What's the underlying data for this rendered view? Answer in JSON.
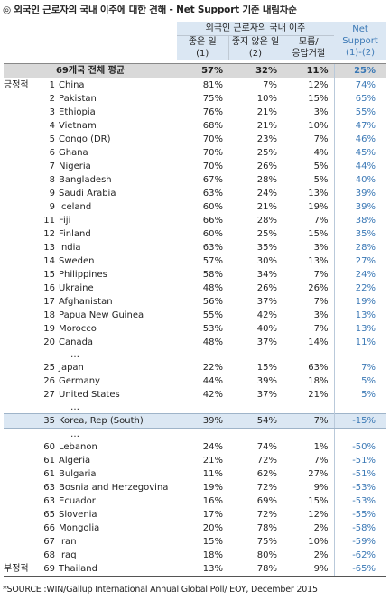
{
  "title": "◎ 외국인 근로자의 국내 이주에 대한 견해 - Net Support 기준 내림차순",
  "header": {
    "group_label": "외국인 근로자의 국내 이주",
    "col1": "좋은 일\n(1)",
    "col2": "좋지 않은 일\n(2)",
    "col3": "모름/\n응답거절",
    "net": "Net\nSupport\n(1)-(2)"
  },
  "average": {
    "label": "69개국 전체 평균",
    "good": "57%",
    "bad": "32%",
    "dk": "11%",
    "net": "25%"
  },
  "positive_label": "긍정적",
  "negative_label": "부정적",
  "top_rows": [
    {
      "rank": "1",
      "country": "China",
      "good": "81%",
      "bad": "7%",
      "dk": "12%",
      "net": "74%"
    },
    {
      "rank": "2",
      "country": "Pakistan",
      "good": "75%",
      "bad": "10%",
      "dk": "15%",
      "net": "65%"
    },
    {
      "rank": "3",
      "country": "Ethiopia",
      "good": "76%",
      "bad": "21%",
      "dk": "3%",
      "net": "55%"
    },
    {
      "rank": "4",
      "country": "Vietnam",
      "good": "68%",
      "bad": "21%",
      "dk": "10%",
      "net": "47%"
    },
    {
      "rank": "5",
      "country": "Congo (DR)",
      "good": "70%",
      "bad": "23%",
      "dk": "7%",
      "net": "46%"
    },
    {
      "rank": "6",
      "country": "Ghana",
      "good": "70%",
      "bad": "25%",
      "dk": "4%",
      "net": "45%"
    },
    {
      "rank": "7",
      "country": "Nigeria",
      "good": "70%",
      "bad": "26%",
      "dk": "5%",
      "net": "44%"
    },
    {
      "rank": "8",
      "country": "Bangladesh",
      "good": "67%",
      "bad": "28%",
      "dk": "5%",
      "net": "40%"
    },
    {
      "rank": "9",
      "country": "Saudi Arabia",
      "good": "63%",
      "bad": "24%",
      "dk": "13%",
      "net": "39%"
    },
    {
      "rank": "9",
      "country": "Iceland",
      "good": "60%",
      "bad": "21%",
      "dk": "19%",
      "net": "39%"
    },
    {
      "rank": "11",
      "country": "Fiji",
      "good": "66%",
      "bad": "28%",
      "dk": "7%",
      "net": "38%"
    },
    {
      "rank": "12",
      "country": "Finland",
      "good": "60%",
      "bad": "25%",
      "dk": "15%",
      "net": "35%"
    },
    {
      "rank": "13",
      "country": "India",
      "good": "63%",
      "bad": "35%",
      "dk": "3%",
      "net": "28%"
    },
    {
      "rank": "14",
      "country": "Sweden",
      "good": "57%",
      "bad": "30%",
      "dk": "13%",
      "net": "27%"
    },
    {
      "rank": "15",
      "country": "Philippines",
      "good": "58%",
      "bad": "34%",
      "dk": "7%",
      "net": "24%"
    },
    {
      "rank": "16",
      "country": "Ukraine",
      "good": "48%",
      "bad": "26%",
      "dk": "26%",
      "net": "22%"
    },
    {
      "rank": "17",
      "country": "Afghanistan",
      "good": "56%",
      "bad": "37%",
      "dk": "7%",
      "net": "19%"
    },
    {
      "rank": "18",
      "country": "Papua New Guinea",
      "good": "55%",
      "bad": "42%",
      "dk": "3%",
      "net": "13%"
    },
    {
      "rank": "19",
      "country": "Morocco",
      "good": "53%",
      "bad": "40%",
      "dk": "7%",
      "net": "13%"
    },
    {
      "rank": "20",
      "country": "Canada",
      "good": "48%",
      "bad": "37%",
      "dk": "14%",
      "net": "11%"
    }
  ],
  "ellipsis": "…",
  "mid_rows": [
    {
      "rank": "25",
      "country": "Japan",
      "good": "22%",
      "bad": "15%",
      "dk": "63%",
      "net": "7%"
    },
    {
      "rank": "26",
      "country": "Germany",
      "good": "44%",
      "bad": "39%",
      "dk": "18%",
      "net": "5%"
    },
    {
      "rank": "27",
      "country": "United States",
      "good": "42%",
      "bad": "37%",
      "dk": "21%",
      "net": "5%"
    }
  ],
  "korea": {
    "rank": "35",
    "country": "Korea, Rep (South)",
    "good": "39%",
    "bad": "54%",
    "dk": "7%",
    "net": "-15%"
  },
  "bottom_rows": [
    {
      "rank": "60",
      "country": "Lebanon",
      "good": "24%",
      "bad": "74%",
      "dk": "1%",
      "net": "-50%"
    },
    {
      "rank": "61",
      "country": "Algeria",
      "good": "21%",
      "bad": "72%",
      "dk": "7%",
      "net": "-51%"
    },
    {
      "rank": "61",
      "country": "Bulgaria",
      "good": "11%",
      "bad": "62%",
      "dk": "27%",
      "net": "-51%"
    },
    {
      "rank": "63",
      "country": "Bosnia and Herzegovina",
      "good": "19%",
      "bad": "72%",
      "dk": "9%",
      "net": "-53%"
    },
    {
      "rank": "63",
      "country": "Ecuador",
      "good": "16%",
      "bad": "69%",
      "dk": "15%",
      "net": "-53%"
    },
    {
      "rank": "65",
      "country": "Slovenia",
      "good": "17%",
      "bad": "72%",
      "dk": "12%",
      "net": "-55%"
    },
    {
      "rank": "66",
      "country": "Mongolia",
      "good": "20%",
      "bad": "78%",
      "dk": "2%",
      "net": "-58%"
    },
    {
      "rank": "67",
      "country": "Iran",
      "good": "15%",
      "bad": "75%",
      "dk": "10%",
      "net": "-59%"
    },
    {
      "rank": "68",
      "country": "Iraq",
      "good": "18%",
      "bad": "80%",
      "dk": "2%",
      "net": "-62%"
    },
    {
      "rank": "69",
      "country": "Thailand",
      "good": "13%",
      "bad": "78%",
      "dk": "9%",
      "net": "-65%"
    }
  ],
  "footnote": "*SOURCE :WIN/Gallup International Annual Global Poll/ EOY, December 2015"
}
